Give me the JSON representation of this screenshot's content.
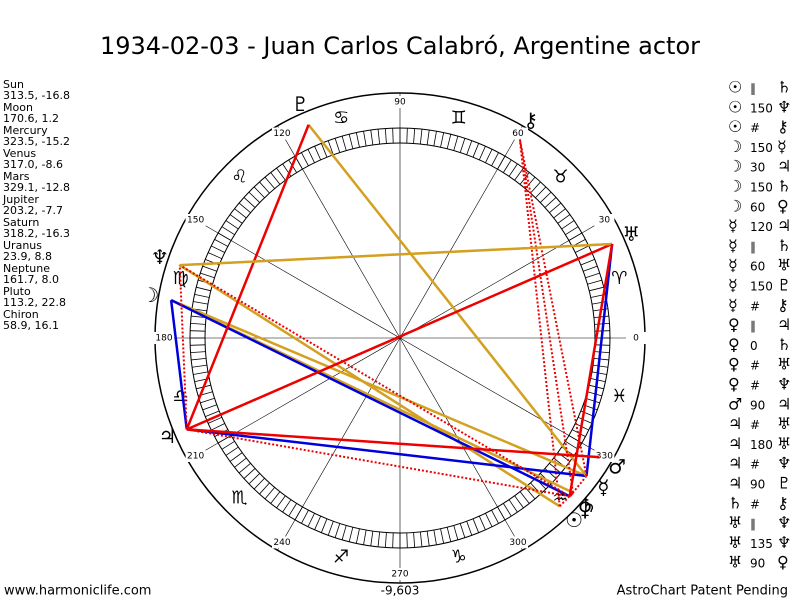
{
  "header": {
    "title": "1934-02-03 - Juan Carlos Calabró, Argentine actor"
  },
  "planets": [
    {
      "name": "Sun",
      "glyph": "☉",
      "position": "313.5, -16.8"
    },
    {
      "name": "Moon",
      "glyph": "☽",
      "position": "170.6, 1.2"
    },
    {
      "name": "Mercury",
      "glyph": "☿",
      "position": "323.5, -15.2"
    },
    {
      "name": "Venus",
      "glyph": "♀",
      "position": "317.0, -8.6"
    },
    {
      "name": "Mars",
      "glyph": "♂",
      "position": "329.1, -12.8"
    },
    {
      "name": "Jupiter",
      "glyph": "♃",
      "position": "203.2, -7.7"
    },
    {
      "name": "Saturn",
      "glyph": "♄",
      "position": "318.2, -16.3"
    },
    {
      "name": "Uranus",
      "glyph": "♅",
      "position": "23.9, 8.8"
    },
    {
      "name": "Neptune",
      "glyph": "♆",
      "position": "161.7, 8.0"
    },
    {
      "name": "Pluto",
      "glyph": "♇",
      "position": "113.2, 22.8"
    },
    {
      "name": "Chiron",
      "glyph": "⚷",
      "position": "58.9, 16.1"
    }
  ],
  "aspects": [
    {
      "p1": "☉",
      "aspect": "∥",
      "p2": "♄"
    },
    {
      "p1": "☉",
      "aspect": "150",
      "p2": "♆"
    },
    {
      "p1": "☉",
      "aspect": "#",
      "p2": "⚷"
    },
    {
      "p1": "☽",
      "aspect": "150",
      "p2": "☿"
    },
    {
      "p1": "☽",
      "aspect": "30",
      "p2": "♃"
    },
    {
      "p1": "☽",
      "aspect": "150",
      "p2": "♄"
    },
    {
      "p1": "☽",
      "aspect": "60",
      "p2": "♀"
    },
    {
      "p1": "☿",
      "aspect": "120",
      "p2": "♃"
    },
    {
      "p1": "☿",
      "aspect": "∥",
      "p2": "♄"
    },
    {
      "p1": "☿",
      "aspect": "60",
      "p2": "♅"
    },
    {
      "p1": "☿",
      "aspect": "150",
      "p2": "♇"
    },
    {
      "p1": "☿",
      "aspect": "#",
      "p2": "⚷"
    },
    {
      "p1": "♀",
      "aspect": "∥",
      "p2": "♃"
    },
    {
      "p1": "♀",
      "aspect": "0",
      "p2": "♄"
    },
    {
      "p1": "♀",
      "aspect": "#",
      "p2": "♅"
    },
    {
      "p1": "♀",
      "aspect": "#",
      "p2": "♆"
    },
    {
      "p1": "♂",
      "aspect": "90",
      "p2": "♃"
    },
    {
      "p1": "♃",
      "aspect": "#",
      "p2": "♅"
    },
    {
      "p1": "♃",
      "aspect": "180",
      "p2": "♅"
    },
    {
      "p1": "♃",
      "aspect": "#",
      "p2": "♆"
    },
    {
      "p1": "♃",
      "aspect": "90",
      "p2": "♇"
    },
    {
      "p1": "♄",
      "aspect": "#",
      "p2": "⚷"
    },
    {
      "p1": "♅",
      "aspect": "∥",
      "p2": "♆"
    },
    {
      "p1": "♅",
      "aspect": "135",
      "p2": "♆"
    },
    {
      "p1": "♅",
      "aspect": "90",
      "p2": "♀"
    }
  ],
  "wheel": {
    "degrees": [
      0,
      30,
      60,
      90,
      120,
      150,
      180,
      210,
      240,
      270,
      300,
      330
    ],
    "signs": [
      "♈",
      "♉",
      "♊",
      "♋",
      "♌",
      "♍",
      "♎",
      "♏",
      "♐",
      "♑",
      "♒",
      "♓"
    ],
    "score": "-9,603"
  },
  "footer": {
    "left": "www.harmoniclife.com",
    "right": "AstroChart Patent Pending"
  }
}
